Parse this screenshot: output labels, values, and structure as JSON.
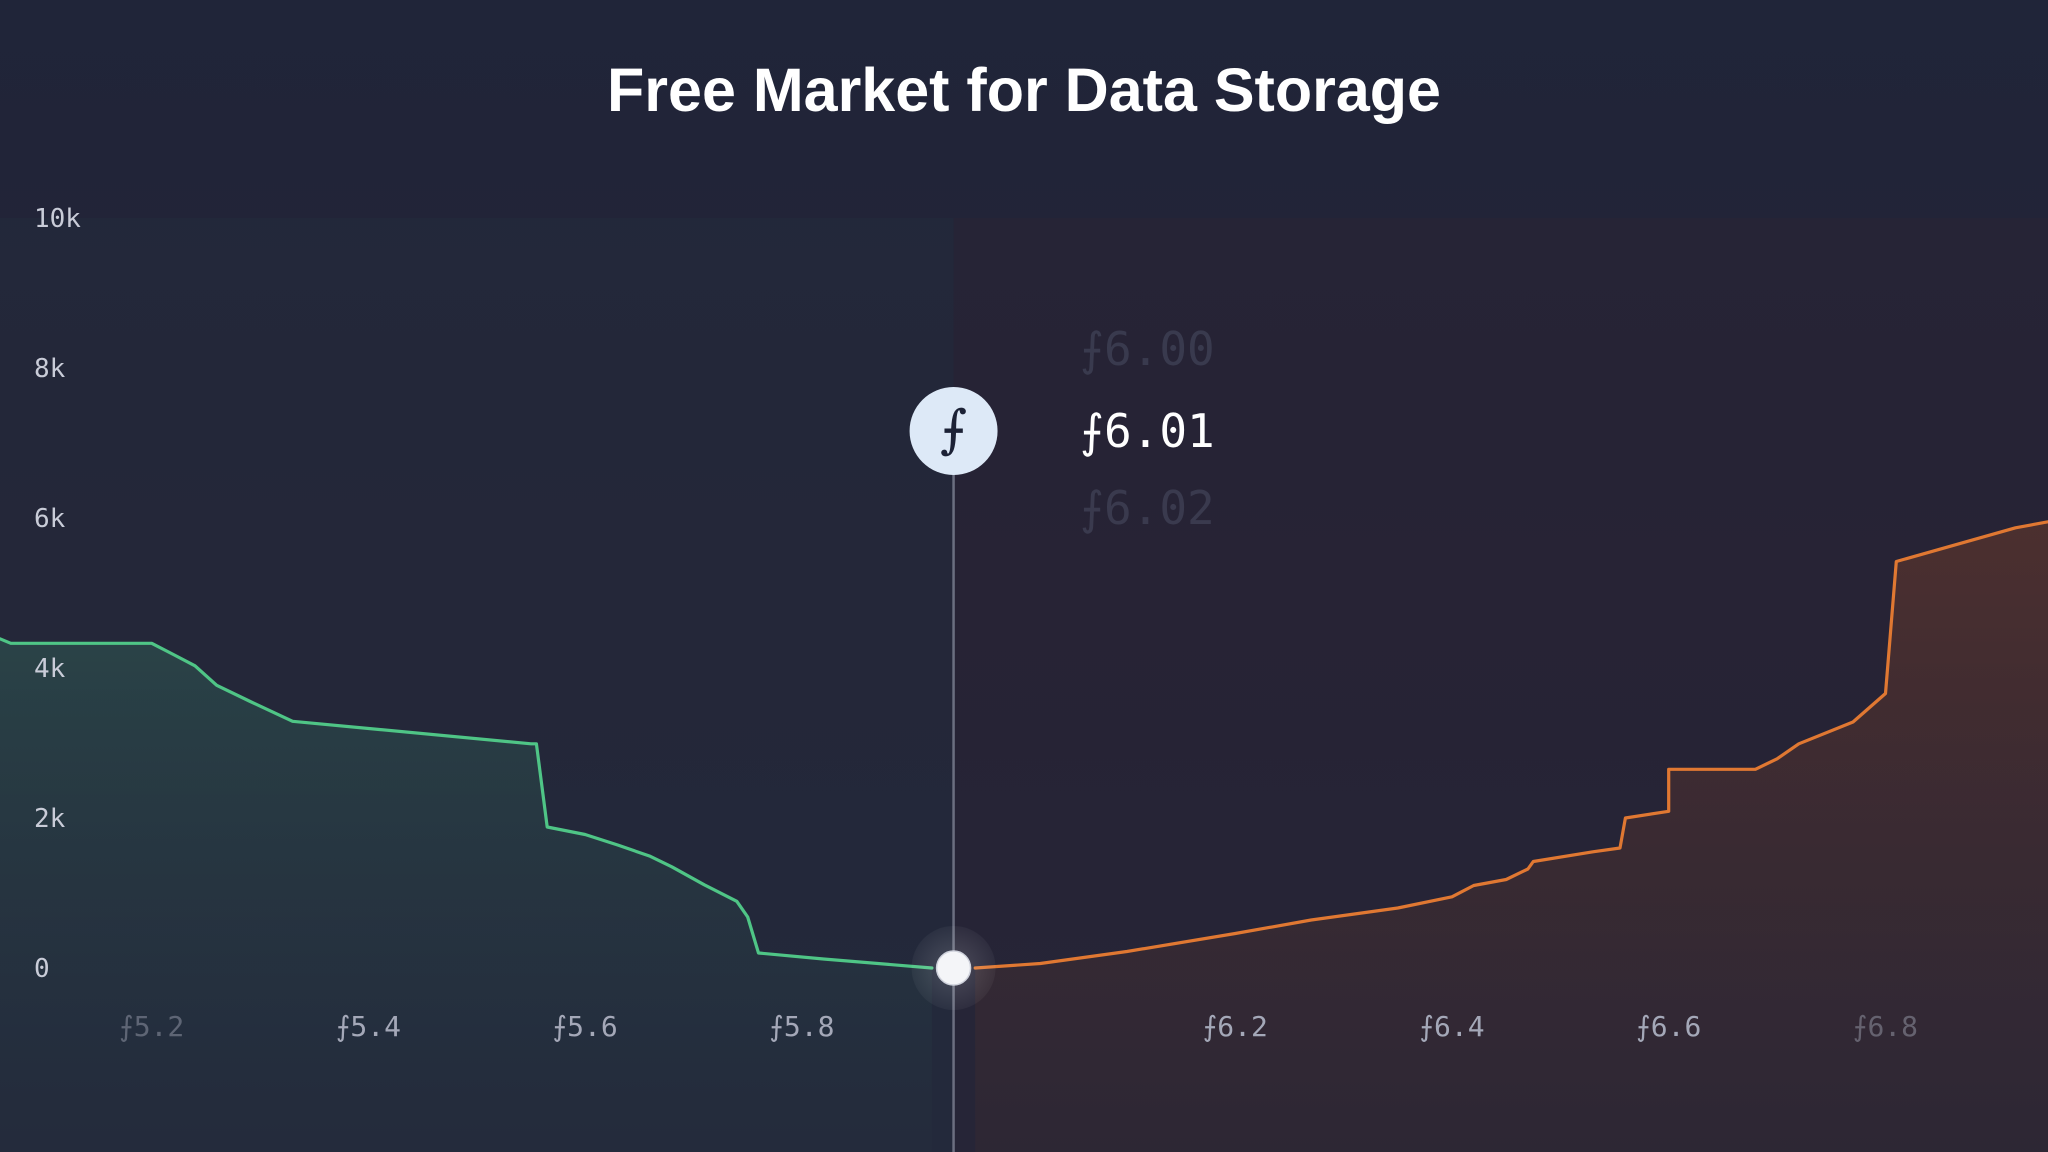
{
  "chart_data": {
    "type": "area",
    "title": "Free Market for Data Storage",
    "xlabel": "",
    "ylabel": "",
    "xlim": [
      5.06,
      6.95
    ],
    "ylim": [
      0,
      10000
    ],
    "yticks": [
      {
        "value": 0,
        "label": "0"
      },
      {
        "value": 2000,
        "label": "2k"
      },
      {
        "value": 4000,
        "label": "4k"
      },
      {
        "value": 6000,
        "label": "6k"
      },
      {
        "value": 8000,
        "label": "8k"
      },
      {
        "value": 10000,
        "label": "10k"
      }
    ],
    "xticks": [
      {
        "value": 5.2,
        "label": "⨍5.2"
      },
      {
        "value": 5.4,
        "label": "⨍5.4"
      },
      {
        "value": 5.6,
        "label": "⨍5.6"
      },
      {
        "value": 5.8,
        "label": "⨍5.8"
      },
      {
        "value": 6.2,
        "label": "⨍6.2"
      },
      {
        "value": 6.4,
        "label": "⨍6.4"
      },
      {
        "value": 6.6,
        "label": "⨍6.6"
      },
      {
        "value": 6.8,
        "label": "⨍6.8"
      }
    ],
    "series": [
      {
        "color": "#4fc586",
        "x": [
          5.06,
          5.07,
          5.2,
          5.22,
          5.24,
          5.26,
          5.29,
          5.33,
          5.41,
          5.55,
          5.555,
          5.565,
          5.6,
          5.63,
          5.66,
          5.68,
          5.71,
          5.74,
          5.75,
          5.76,
          5.82,
          5.92
        ],
        "y": [
          4390,
          4330,
          4330,
          4180,
          4030,
          3770,
          3560,
          3290,
          3180,
          2990,
          2990,
          1880,
          1780,
          1640,
          1490,
          1350,
          1110,
          890,
          680,
          200,
          120,
          0
        ]
      },
      {
        "color": "#e07832",
        "x": [
          5.96,
          6.02,
          6.1,
          6.2,
          6.27,
          6.35,
          6.4,
          6.42,
          6.45,
          6.47,
          6.475,
          6.53,
          6.555,
          6.56,
          6.6,
          6.6,
          6.68,
          6.7,
          6.72,
          6.77,
          6.8,
          6.81,
          6.92,
          6.95
        ],
        "y": [
          0,
          60,
          220,
          460,
          640,
          800,
          950,
          1100,
          1180,
          1320,
          1420,
          1550,
          1600,
          2000,
          2090,
          2650,
          2650,
          2790,
          2990,
          3280,
          3660,
          5420,
          5870,
          5950
        ]
      }
    ],
    "marker": {
      "x": 5.94,
      "y": 0
    },
    "price_wheel": {
      "current": "⨍6.01",
      "faded": [
        "⨍6.00",
        "⨍6.02"
      ],
      "icon": "filecoin-icon",
      "icon_glyph": "⨍"
    }
  }
}
